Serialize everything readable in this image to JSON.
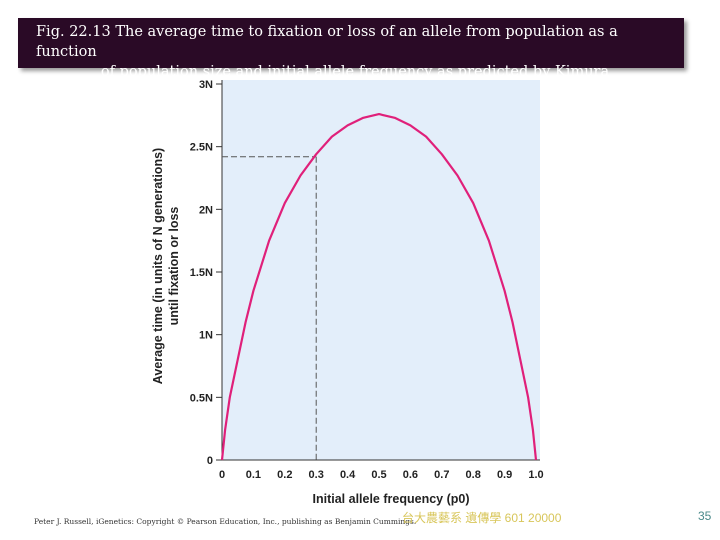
{
  "slide": {
    "title_line1": "Fig. 22.13  The average time to fixation or loss of an allele from population as a function",
    "title_line2": "of population size and initial allele frequency as predicted by Kimura",
    "credit": "Peter J. Russell, iGenetics: Copyright © Pearson Education, Inc., publishing as Benjamin Cummings.",
    "course": "台大農藝系 遺傳學 601 20000",
    "page_number": "35"
  },
  "chart_data": {
    "type": "line",
    "xlabel": "Initial allele frequency (p0)",
    "ylabel_line1": "Average time (in units of N generations)",
    "ylabel_line2": "until fixation or loss",
    "xlim": [
      0,
      1
    ],
    "ylim": [
      0,
      3
    ],
    "x_ticks": [
      "0",
      "0.1",
      "0.2",
      "0.3",
      "0.4",
      "0.5",
      "0.6",
      "0.7",
      "0.8",
      "0.9",
      "1.0"
    ],
    "y_ticks": [
      {
        "value": 0,
        "label": "0"
      },
      {
        "value": 0.5,
        "label": "0.5N"
      },
      {
        "value": 1,
        "label": "1N"
      },
      {
        "value": 1.5,
        "label": "1.5N"
      },
      {
        "value": 2,
        "label": "2N"
      },
      {
        "value": 2.5,
        "label": "2.5N"
      },
      {
        "value": 3,
        "label": "3N"
      }
    ],
    "series": [
      {
        "x": [
          0.0,
          0.01,
          0.025,
          0.05,
          0.075,
          0.1,
          0.15,
          0.2,
          0.25,
          0.3,
          0.35,
          0.4,
          0.45,
          0.5,
          0.55,
          0.6,
          0.65,
          0.7,
          0.75,
          0.8,
          0.85,
          0.9,
          0.925,
          0.95,
          0.975,
          0.99,
          1.0
        ],
        "y": [
          0.0,
          0.24,
          0.5,
          0.8,
          1.1,
          1.35,
          1.75,
          2.05,
          2.27,
          2.44,
          2.58,
          2.67,
          2.73,
          2.76,
          2.73,
          2.67,
          2.58,
          2.44,
          2.27,
          2.05,
          1.75,
          1.35,
          1.1,
          0.8,
          0.5,
          0.24,
          0.0
        ],
        "color": "#e0207a"
      }
    ],
    "annotation": {
      "x": 0.3,
      "y": 2.42,
      "style": "dashed reference lines"
    },
    "grid": false,
    "plot_background": "#e3eefa"
  }
}
